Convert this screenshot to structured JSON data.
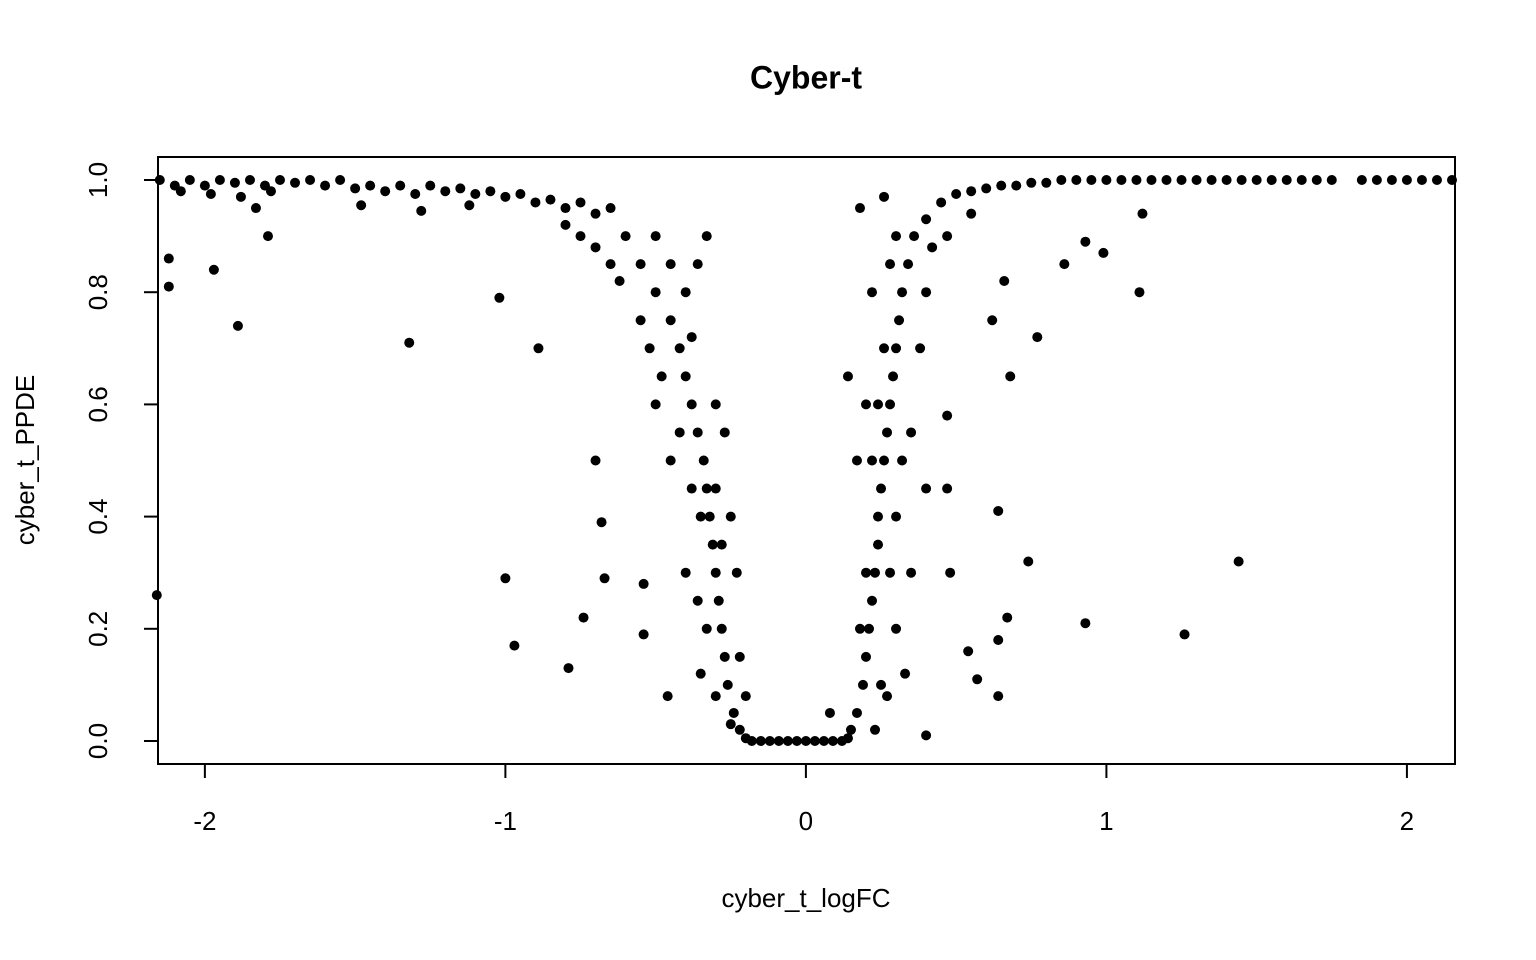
{
  "chart_data": {
    "type": "scatter",
    "title": "Cyber-t",
    "xlabel": "cyber_t_logFC",
    "ylabel": "cyber_t_PPDE",
    "color": "#000000",
    "xlim": [
      -2.156,
      2.16
    ],
    "ylim": [
      -0.041,
      1.041
    ],
    "xticks": [
      -2,
      -1,
      0,
      1,
      2
    ],
    "yticks": [
      {
        "value": 0,
        "label": "0.0"
      },
      0.2,
      0.4,
      0.6,
      0.8,
      {
        "value": 1,
        "label": "1.0"
      }
    ],
    "x": [
      -2.15,
      -2.1,
      -2.05,
      -2.0,
      -1.95,
      -1.9,
      -1.85,
      -1.8,
      -1.75,
      -1.7,
      -1.65,
      -1.6,
      -1.55,
      -1.5,
      -1.45,
      -1.4,
      -1.35,
      -1.3,
      -1.25,
      -1.2,
      -1.15,
      -1.1,
      -1.05,
      -1.0,
      -0.95,
      -0.9,
      -0.85,
      -0.8,
      -0.75,
      -0.7,
      -0.65,
      -2.08,
      -1.98,
      -1.88,
      -1.78,
      -1.48,
      -1.28,
      -1.83,
      -1.12,
      -0.6,
      -0.55,
      -0.5,
      -0.45,
      -0.42,
      -0.4,
      -0.38,
      -0.36,
      -0.34,
      -0.33,
      -0.32,
      -0.31,
      -0.3,
      -0.29,
      -0.28,
      -0.27,
      -0.26,
      -0.24,
      -0.22,
      -0.2,
      -0.65,
      -0.5,
      -0.45,
      -0.55,
      -0.48,
      -0.42,
      -0.38,
      -0.35,
      -0.3,
      -0.28,
      -0.4,
      -0.33,
      -0.35,
      -0.3,
      -0.25,
      -0.36,
      -0.45,
      -0.5,
      -0.52,
      -0.62,
      -0.7,
      -0.75,
      -0.8,
      -0.33,
      -0.36,
      -0.4,
      -0.38,
      -0.3,
      -0.27,
      -0.25,
      -0.23,
      -0.22,
      -0.2,
      -0.18,
      -0.15,
      -0.12,
      -0.09,
      -0.06,
      -0.03,
      0.0,
      0.03,
      0.06,
      0.09,
      0.12,
      0.14,
      0.15,
      0.17,
      0.19,
      0.2,
      0.21,
      0.22,
      0.23,
      0.24,
      0.24,
      0.25,
      0.26,
      0.27,
      0.28,
      0.29,
      0.3,
      0.31,
      0.32,
      0.34,
      0.36,
      0.4,
      0.45,
      0.5,
      0.2,
      0.22,
      0.18,
      0.25,
      0.28,
      0.3,
      0.32,
      0.35,
      0.38,
      0.4,
      0.3,
      0.27,
      0.23,
      0.26,
      0.24,
      0.28,
      0.3,
      0.42,
      0.47,
      0.55,
      0.35,
      0.4,
      0.33,
      0.2,
      0.17,
      0.22,
      0.18,
      0.26,
      0.55,
      0.6,
      0.65,
      0.7,
      0.75,
      0.8,
      0.85,
      0.9,
      0.95,
      1.0,
      1.05,
      1.1,
      1.15,
      1.2,
      1.25,
      1.3,
      1.35,
      1.4,
      1.45,
      1.5,
      1.55,
      1.6,
      1.65,
      1.7,
      1.75,
      1.85,
      1.9,
      1.95,
      2.0,
      2.05,
      2.1,
      2.15,
      -2.16,
      -2.12,
      -2.12,
      -1.97,
      -1.89,
      -1.79,
      -1.32,
      -1.02,
      -1.0,
      -0.97,
      -0.89,
      -0.79,
      -0.74,
      -0.67,
      -0.68,
      -0.7,
      -0.54,
      -0.54,
      -0.46,
      0.4,
      0.47,
      0.47,
      0.48,
      0.54,
      0.57,
      0.64,
      0.64,
      0.64,
      0.67,
      0.68,
      0.74,
      0.77,
      0.86,
      0.93,
      0.93,
      0.99,
      1.11,
      1.12,
      1.26,
      1.44,
      0.08,
      0.14,
      0.62,
      0.66
    ],
    "values": [
      1.0,
      0.99,
      1.0,
      0.99,
      1.0,
      0.995,
      1.0,
      0.99,
      1.0,
      0.995,
      1.0,
      0.99,
      1.0,
      0.985,
      0.99,
      0.98,
      0.99,
      0.975,
      0.99,
      0.98,
      0.985,
      0.975,
      0.98,
      0.97,
      0.975,
      0.96,
      0.965,
      0.95,
      0.96,
      0.94,
      0.95,
      0.98,
      0.975,
      0.97,
      0.98,
      0.955,
      0.945,
      0.95,
      0.955,
      0.9,
      0.85,
      0.8,
      0.75,
      0.7,
      0.65,
      0.6,
      0.55,
      0.5,
      0.45,
      0.4,
      0.35,
      0.3,
      0.25,
      0.2,
      0.15,
      0.1,
      0.05,
      0.02,
      0.005,
      0.85,
      0.9,
      0.85,
      0.75,
      0.65,
      0.55,
      0.45,
      0.4,
      0.45,
      0.35,
      0.3,
      0.2,
      0.12,
      0.08,
      0.03,
      0.25,
      0.5,
      0.6,
      0.7,
      0.82,
      0.88,
      0.9,
      0.92,
      0.9,
      0.85,
      0.8,
      0.72,
      0.6,
      0.55,
      0.4,
      0.3,
      0.15,
      0.08,
      0.0,
      0.0,
      0.0,
      0.0,
      0.0,
      0.0,
      0.0,
      0.0,
      0.0,
      0.0,
      0.0,
      0.005,
      0.02,
      0.05,
      0.1,
      0.15,
      0.2,
      0.25,
      0.3,
      0.35,
      0.4,
      0.45,
      0.5,
      0.55,
      0.6,
      0.65,
      0.7,
      0.75,
      0.8,
      0.85,
      0.9,
      0.93,
      0.96,
      0.975,
      0.3,
      0.5,
      0.2,
      0.1,
      0.3,
      0.4,
      0.5,
      0.55,
      0.7,
      0.8,
      0.2,
      0.08,
      0.02,
      0.7,
      0.6,
      0.85,
      0.9,
      0.88,
      0.9,
      0.94,
      0.3,
      0.45,
      0.12,
      0.6,
      0.5,
      0.8,
      0.95,
      0.97,
      0.98,
      0.985,
      0.99,
      0.99,
      0.995,
      0.995,
      1.0,
      1.0,
      1.0,
      1.0,
      1.0,
      1.0,
      1.0,
      1.0,
      1.0,
      1.0,
      1.0,
      1.0,
      1.0,
      1.0,
      1.0,
      1.0,
      1.0,
      1.0,
      1.0,
      1.0,
      1.0,
      1.0,
      1.0,
      1.0,
      1.0,
      1.0,
      0.26,
      0.81,
      0.86,
      0.84,
      0.74,
      0.9,
      0.71,
      0.79,
      0.29,
      0.17,
      0.7,
      0.13,
      0.22,
      0.29,
      0.39,
      0.5,
      0.28,
      0.19,
      0.08,
      0.01,
      0.58,
      0.45,
      0.3,
      0.16,
      0.11,
      0.41,
      0.18,
      0.08,
      0.22,
      0.65,
      0.32,
      0.72,
      0.85,
      0.21,
      0.89,
      0.87,
      0.8,
      0.94,
      0.19,
      0.32,
      0.05,
      0.65,
      0.75,
      0.82
    ]
  }
}
